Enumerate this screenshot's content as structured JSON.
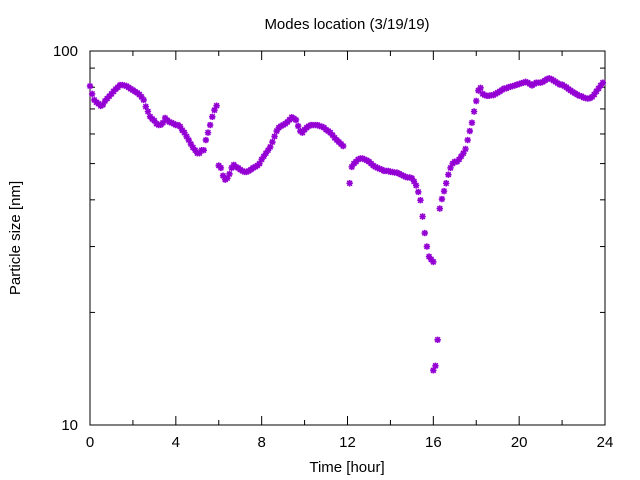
{
  "chart_data": {
    "type": "scatter",
    "title": "Modes location (3/19/19)",
    "xlabel": "Time [hour]",
    "ylabel": "Particle size [nm]",
    "xlim": [
      0,
      24
    ],
    "ylim": [
      10,
      100
    ],
    "yscale": "log",
    "x_ticks": [
      "0",
      "4",
      "8",
      "12",
      "16",
      "20",
      "24"
    ],
    "y_ticks": [
      "10",
      "100"
    ],
    "marker": "star",
    "color": "#9400d3",
    "grid": false,
    "series": [
      {
        "points": [
          [
            0.0,
            80.6
          ],
          [
            0.1,
            76.8
          ],
          [
            0.2,
            74.0
          ],
          [
            0.3,
            72.9
          ],
          [
            0.4,
            72.3
          ],
          [
            0.5,
            71.3
          ],
          [
            0.6,
            71.8
          ],
          [
            0.7,
            73.5
          ],
          [
            0.8,
            74.6
          ],
          [
            0.9,
            75.7
          ],
          [
            1.0,
            76.8
          ],
          [
            1.1,
            78.0
          ],
          [
            1.2,
            79.1
          ],
          [
            1.3,
            80.0
          ],
          [
            1.4,
            81.1
          ],
          [
            1.5,
            81.1
          ],
          [
            1.6,
            80.9
          ],
          [
            1.7,
            80.6
          ],
          [
            1.8,
            79.9
          ],
          [
            1.9,
            79.2
          ],
          [
            2.0,
            78.6
          ],
          [
            2.1,
            77.9
          ],
          [
            2.2,
            77.3
          ],
          [
            2.3,
            76.5
          ],
          [
            2.4,
            75.4
          ],
          [
            2.5,
            74.0
          ],
          [
            2.6,
            71.0
          ],
          [
            2.7,
            68.9
          ],
          [
            2.8,
            66.8
          ],
          [
            2.9,
            65.8
          ],
          [
            3.0,
            65.1
          ],
          [
            3.1,
            63.9
          ],
          [
            3.2,
            63.4
          ],
          [
            3.3,
            63.5
          ],
          [
            3.4,
            64.3
          ],
          [
            3.5,
            66.2
          ],
          [
            3.6,
            65.3
          ],
          [
            3.7,
            64.6
          ],
          [
            3.8,
            64.3
          ],
          [
            3.9,
            63.9
          ],
          [
            4.0,
            63.4
          ],
          [
            4.1,
            63.4
          ],
          [
            4.2,
            62.8
          ],
          [
            4.3,
            61.4
          ],
          [
            4.4,
            60.5
          ],
          [
            4.5,
            59.1
          ],
          [
            4.6,
            57.8
          ],
          [
            4.7,
            56.4
          ],
          [
            4.8,
            55.2
          ],
          [
            4.9,
            54.3
          ],
          [
            5.0,
            53.3
          ],
          [
            5.1,
            53.3
          ],
          [
            5.2,
            54.3
          ],
          [
            5.3,
            54.3
          ],
          [
            5.4,
            57.8
          ],
          [
            5.5,
            60.5
          ],
          [
            5.6,
            63.4
          ],
          [
            5.7,
            66.7
          ],
          [
            5.8,
            69.5
          ],
          [
            5.9,
            71.4
          ],
          [
            6.0,
            49.4
          ],
          [
            6.1,
            48.7
          ],
          [
            6.2,
            46.4
          ],
          [
            6.3,
            45.3
          ],
          [
            6.4,
            45.7
          ],
          [
            6.5,
            46.9
          ],
          [
            6.6,
            48.7
          ],
          [
            6.7,
            49.6
          ],
          [
            6.8,
            49.0
          ],
          [
            6.9,
            48.7
          ],
          [
            7.0,
            48.2
          ],
          [
            7.1,
            47.8
          ],
          [
            7.2,
            47.5
          ],
          [
            7.3,
            47.5
          ],
          [
            7.4,
            47.8
          ],
          [
            7.5,
            48.2
          ],
          [
            7.6,
            48.7
          ],
          [
            7.7,
            49.0
          ],
          [
            7.8,
            49.4
          ],
          [
            7.9,
            50.0
          ],
          [
            8.0,
            51.3
          ],
          [
            8.1,
            52.3
          ],
          [
            8.2,
            53.3
          ],
          [
            8.3,
            54.3
          ],
          [
            8.4,
            55.4
          ],
          [
            8.5,
            57.1
          ],
          [
            8.6,
            59.1
          ],
          [
            8.7,
            61.1
          ],
          [
            8.8,
            62.4
          ],
          [
            8.9,
            63.0
          ],
          [
            9.0,
            63.4
          ],
          [
            9.1,
            63.9
          ],
          [
            9.2,
            64.6
          ],
          [
            9.3,
            65.5
          ],
          [
            9.4,
            66.5
          ],
          [
            9.5,
            66.0
          ],
          [
            9.6,
            65.4
          ],
          [
            9.7,
            63.0
          ],
          [
            9.8,
            61.1
          ],
          [
            9.9,
            60.5
          ],
          [
            10.0,
            61.6
          ],
          [
            10.1,
            62.4
          ],
          [
            10.2,
            63.0
          ],
          [
            10.3,
            63.4
          ],
          [
            10.4,
            63.4
          ],
          [
            10.5,
            63.4
          ],
          [
            10.6,
            63.4
          ],
          [
            10.7,
            63.0
          ],
          [
            10.8,
            62.8
          ],
          [
            10.9,
            62.4
          ],
          [
            11.0,
            61.6
          ],
          [
            11.1,
            61.1
          ],
          [
            11.2,
            60.5
          ],
          [
            11.3,
            59.6
          ],
          [
            11.4,
            58.6
          ],
          [
            11.5,
            57.8
          ],
          [
            11.6,
            57.1
          ],
          [
            11.7,
            56.4
          ],
          [
            11.8,
            55.7
          ],
          [
            12.1,
            44.3
          ],
          [
            12.2,
            49.0
          ],
          [
            12.3,
            50.0
          ],
          [
            12.4,
            50.6
          ],
          [
            12.5,
            51.3
          ],
          [
            12.6,
            51.6
          ],
          [
            12.7,
            51.6
          ],
          [
            12.8,
            51.3
          ],
          [
            12.9,
            51.0
          ],
          [
            13.0,
            50.6
          ],
          [
            13.1,
            50.0
          ],
          [
            13.2,
            49.4
          ],
          [
            13.3,
            49.0
          ],
          [
            13.4,
            48.7
          ],
          [
            13.5,
            48.4
          ],
          [
            13.6,
            48.2
          ],
          [
            13.7,
            47.8
          ],
          [
            13.8,
            47.8
          ],
          [
            13.9,
            47.8
          ],
          [
            14.0,
            47.5
          ],
          [
            14.1,
            47.5
          ],
          [
            14.2,
            47.3
          ],
          [
            14.3,
            47.3
          ],
          [
            14.4,
            47.0
          ],
          [
            14.5,
            46.7
          ],
          [
            14.6,
            46.4
          ],
          [
            14.7,
            46.1
          ],
          [
            14.8,
            45.9
          ],
          [
            14.9,
            45.9
          ],
          [
            15.0,
            45.7
          ],
          [
            15.1,
            44.8
          ],
          [
            15.2,
            43.7
          ],
          [
            15.3,
            42.0
          ],
          [
            15.4,
            39.9
          ],
          [
            15.5,
            36.1
          ],
          [
            15.6,
            32.6
          ],
          [
            15.7,
            30.0
          ],
          [
            15.8,
            28.2
          ],
          [
            15.9,
            27.7
          ],
          [
            16.0,
            27.3
          ],
          [
            16.0,
            14.0
          ],
          [
            16.1,
            14.4
          ],
          [
            16.2,
            16.9
          ],
          [
            16.3,
            37.9
          ],
          [
            16.4,
            40.2
          ],
          [
            16.5,
            42.2
          ],
          [
            16.6,
            44.3
          ],
          [
            16.7,
            46.7
          ],
          [
            16.8,
            48.7
          ],
          [
            16.9,
            50.0
          ],
          [
            17.0,
            50.6
          ],
          [
            17.1,
            50.6
          ],
          [
            17.2,
            51.3
          ],
          [
            17.3,
            52.3
          ],
          [
            17.4,
            53.3
          ],
          [
            17.5,
            54.7
          ],
          [
            17.6,
            57.8
          ],
          [
            17.7,
            61.1
          ],
          [
            17.8,
            64.3
          ],
          [
            17.9,
            68.9
          ],
          [
            18.0,
            73.5
          ],
          [
            18.1,
            78.4
          ],
          [
            18.2,
            79.7
          ],
          [
            18.3,
            76.8
          ],
          [
            18.4,
            76.2
          ],
          [
            18.5,
            75.9
          ],
          [
            18.6,
            75.9
          ],
          [
            18.7,
            76.2
          ],
          [
            18.8,
            76.2
          ],
          [
            18.9,
            76.8
          ],
          [
            19.0,
            77.4
          ],
          [
            19.1,
            78.0
          ],
          [
            19.2,
            78.7
          ],
          [
            19.3,
            79.4
          ],
          [
            19.4,
            79.4
          ],
          [
            19.5,
            80.0
          ],
          [
            19.6,
            80.3
          ],
          [
            19.7,
            80.6
          ],
          [
            19.8,
            80.9
          ],
          [
            19.9,
            81.3
          ],
          [
            20.0,
            81.6
          ],
          [
            20.1,
            82.0
          ],
          [
            20.2,
            82.3
          ],
          [
            20.3,
            82.7
          ],
          [
            20.4,
            82.3
          ],
          [
            20.5,
            81.6
          ],
          [
            20.6,
            80.9
          ],
          [
            20.7,
            81.6
          ],
          [
            20.8,
            82.3
          ],
          [
            20.9,
            82.3
          ],
          [
            21.0,
            82.3
          ],
          [
            21.1,
            82.7
          ],
          [
            21.2,
            83.4
          ],
          [
            21.3,
            84.1
          ],
          [
            21.4,
            84.5
          ],
          [
            21.5,
            84.1
          ],
          [
            21.6,
            83.4
          ],
          [
            21.7,
            82.7
          ],
          [
            21.8,
            82.0
          ],
          [
            21.9,
            81.3
          ],
          [
            22.0,
            81.3
          ],
          [
            22.1,
            80.6
          ],
          [
            22.2,
            80.0
          ],
          [
            22.3,
            79.1
          ],
          [
            22.4,
            78.4
          ],
          [
            22.5,
            77.7
          ],
          [
            22.6,
            77.1
          ],
          [
            22.7,
            76.5
          ],
          [
            22.8,
            75.9
          ],
          [
            22.9,
            75.7
          ],
          [
            23.0,
            75.1
          ],
          [
            23.1,
            74.8
          ],
          [
            23.2,
            74.6
          ],
          [
            23.3,
            74.8
          ],
          [
            23.4,
            75.4
          ],
          [
            23.5,
            76.5
          ],
          [
            23.6,
            78.0
          ],
          [
            23.7,
            79.4
          ],
          [
            23.8,
            80.9
          ],
          [
            23.9,
            82.3
          ]
        ]
      }
    ]
  }
}
